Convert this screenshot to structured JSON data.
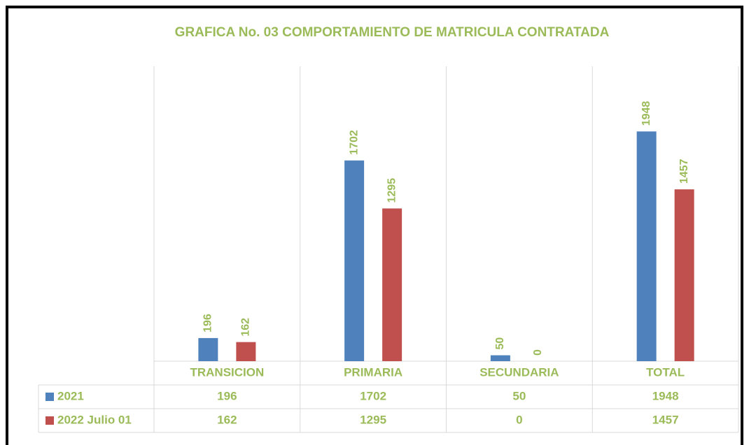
{
  "chart_data": {
    "type": "bar",
    "title": "GRAFICA No. 03 COMPORTAMIENTO DE MATRICULA CONTRATADA",
    "categories": [
      "TRANSICION",
      "PRIMARIA",
      "SECUNDARIA",
      "TOTAL"
    ],
    "series": [
      {
        "name": "2021",
        "color": "#4f81bd",
        "values": [
          196,
          1702,
          50,
          1948
        ]
      },
      {
        "name": "2022 Julio 01",
        "color": "#c0504d",
        "values": [
          162,
          1295,
          0,
          1457
        ]
      }
    ],
    "ylim": [
      0,
      2500
    ],
    "data_table": true
  }
}
